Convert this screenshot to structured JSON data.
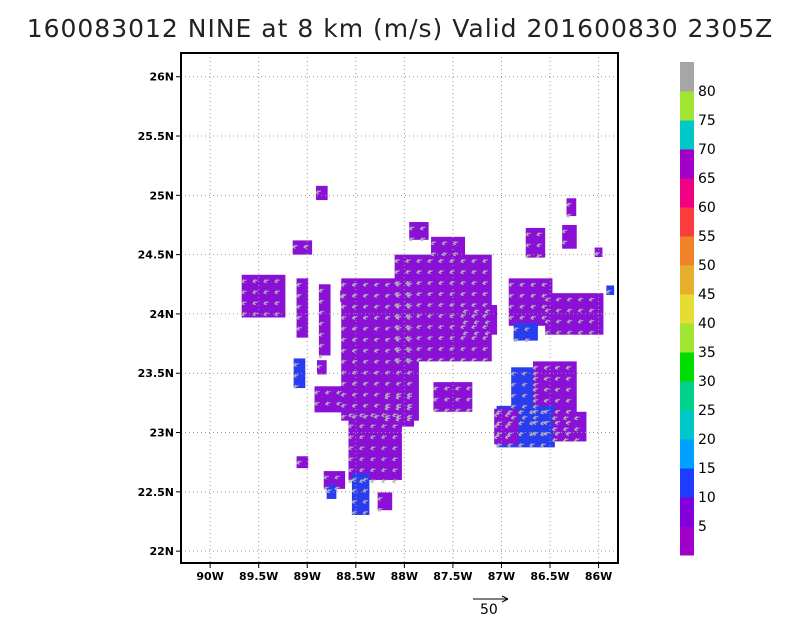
{
  "title": "160083012 NINE at 8 km (m/s) Valid 201600830 2305Z",
  "chart_data": {
    "type": "heatmap",
    "title": "160083012 NINE at 8 km (m/s) Valid 201600830 2305Z",
    "xlim": [
      -90.3,
      -85.8
    ],
    "ylim": [
      21.9,
      26.2
    ],
    "x_ticks": [
      -90,
      -89.5,
      -89,
      -88.5,
      -88,
      -87.5,
      -87,
      -86.5,
      -86
    ],
    "x_tick_labels": [
      "90W",
      "89.5W",
      "89W",
      "88.5W",
      "88W",
      "87.5W",
      "87W",
      "86.5W",
      "86W"
    ],
    "y_ticks": [
      22,
      22.5,
      23,
      23.5,
      24,
      24.5,
      25,
      25.5,
      26
    ],
    "y_tick_labels": [
      "22N",
      "22.5N",
      "23N",
      "23.5N",
      "24N",
      "24.5N",
      "25N",
      "25.5N",
      "26N"
    ],
    "grid": true,
    "colorbar": {
      "labels": [
        "5",
        "10",
        "15",
        "20",
        "25",
        "30",
        "35",
        "40",
        "45",
        "50",
        "55",
        "60",
        "65",
        "70",
        "75",
        "80"
      ],
      "colors": [
        "#a000c8",
        "#8200dc",
        "#1e3cff",
        "#00a0ff",
        "#00c8c8",
        "#00d28c",
        "#00dc00",
        "#a0e632",
        "#e6dc32",
        "#e6af2d",
        "#f08228",
        "#fa3c3c",
        "#f00082",
        "#a000c8",
        "#00c8c8",
        "#a0e632",
        "#a6a6a6"
      ]
    },
    "reference_vector": {
      "label": "50",
      "value": 50
    },
    "cells": [
      {
        "x": -88.85,
        "y": 25.02,
        "w": 0.12,
        "h": 0.12,
        "v": 5
      },
      {
        "x": -89.05,
        "y": 24.56,
        "w": 0.2,
        "h": 0.12,
        "v": 5
      },
      {
        "x": -89.45,
        "y": 24.15,
        "w": 0.45,
        "h": 0.36,
        "v": 5
      },
      {
        "x": -89.05,
        "y": 24.05,
        "w": 0.12,
        "h": 0.5,
        "v": 5
      },
      {
        "x": -88.82,
        "y": 23.95,
        "w": 0.12,
        "h": 0.6,
        "v": 5
      },
      {
        "x": -89.08,
        "y": 23.5,
        "w": 0.12,
        "h": 0.25,
        "v": 10
      },
      {
        "x": -88.75,
        "y": 23.28,
        "w": 0.35,
        "h": 0.22,
        "v": 5
      },
      {
        "x": -88.25,
        "y": 23.7,
        "w": 0.8,
        "h": 1.2,
        "v": 5
      },
      {
        "x": -87.6,
        "y": 24.05,
        "w": 1.0,
        "h": 0.9,
        "v": 5
      },
      {
        "x": -88.3,
        "y": 22.9,
        "w": 0.55,
        "h": 0.6,
        "v": 5
      },
      {
        "x": -88.05,
        "y": 23.2,
        "w": 0.3,
        "h": 0.3,
        "v": 5
      },
      {
        "x": -87.55,
        "y": 24.55,
        "w": 0.35,
        "h": 0.2,
        "v": 5
      },
      {
        "x": -87.5,
        "y": 23.3,
        "w": 0.4,
        "h": 0.25,
        "v": 5
      },
      {
        "x": -86.7,
        "y": 24.1,
        "w": 0.45,
        "h": 0.4,
        "v": 5
      },
      {
        "x": -86.25,
        "y": 24.0,
        "w": 0.6,
        "h": 0.35,
        "v": 5
      },
      {
        "x": -86.75,
        "y": 23.3,
        "w": 0.3,
        "h": 0.5,
        "v": 10
      },
      {
        "x": -86.45,
        "y": 23.3,
        "w": 0.45,
        "h": 0.6,
        "v": 5
      },
      {
        "x": -86.75,
        "y": 23.05,
        "w": 0.6,
        "h": 0.35,
        "v": 10
      },
      {
        "x": -86.95,
        "y": 23.05,
        "w": 0.25,
        "h": 0.3,
        "v": 5
      },
      {
        "x": -86.3,
        "y": 23.05,
        "w": 0.35,
        "h": 0.25,
        "v": 5
      },
      {
        "x": -86.75,
        "y": 23.85,
        "w": 0.25,
        "h": 0.15,
        "v": 10
      },
      {
        "x": -87.85,
        "y": 24.7,
        "w": 0.2,
        "h": 0.15,
        "v": 5
      },
      {
        "x": -86.65,
        "y": 24.6,
        "w": 0.2,
        "h": 0.25,
        "v": 5
      },
      {
        "x": -86.3,
        "y": 24.65,
        "w": 0.15,
        "h": 0.2,
        "v": 5
      },
      {
        "x": -86.28,
        "y": 24.9,
        "w": 0.1,
        "h": 0.15,
        "v": 5
      },
      {
        "x": -86.0,
        "y": 24.52,
        "w": 0.08,
        "h": 0.08,
        "v": 5
      },
      {
        "x": -85.88,
        "y": 24.2,
        "w": 0.08,
        "h": 0.08,
        "v": 10
      },
      {
        "x": -88.45,
        "y": 22.48,
        "w": 0.18,
        "h": 0.35,
        "v": 10
      },
      {
        "x": -88.2,
        "y": 22.42,
        "w": 0.15,
        "h": 0.15,
        "v": 5
      },
      {
        "x": -88.72,
        "y": 22.6,
        "w": 0.22,
        "h": 0.15,
        "v": 5
      },
      {
        "x": -88.75,
        "y": 22.5,
        "w": 0.1,
        "h": 0.12,
        "v": 10
      },
      {
        "x": -89.05,
        "y": 22.75,
        "w": 0.12,
        "h": 0.1,
        "v": 5
      },
      {
        "x": -88.85,
        "y": 23.55,
        "w": 0.1,
        "h": 0.12,
        "v": 5
      },
      {
        "x": -88.62,
        "y": 24.15,
        "w": 0.08,
        "h": 0.1,
        "v": 5
      },
      {
        "x": -87.22,
        "y": 23.95,
        "w": 0.35,
        "h": 0.25,
        "v": 5
      }
    ]
  }
}
